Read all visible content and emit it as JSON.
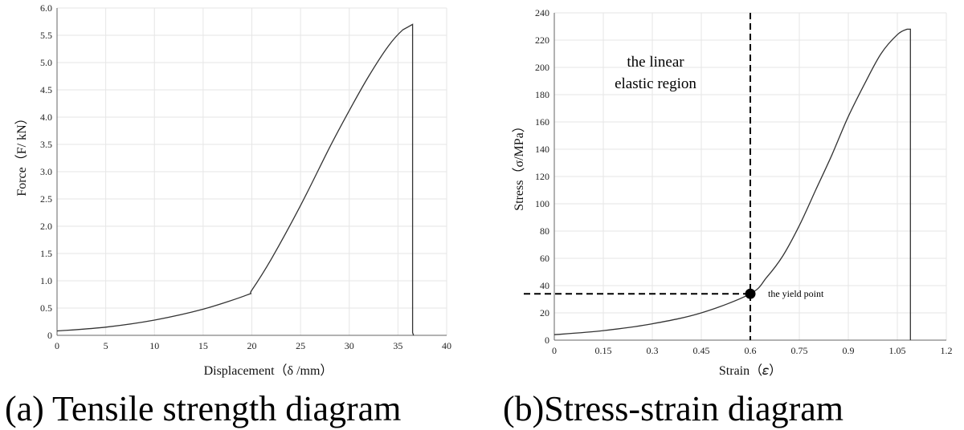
{
  "chart_data": [
    {
      "type": "line",
      "title": "",
      "xlabel": "Displacement（δ /mm）",
      "ylabel": "Force（F/ kN）",
      "xlim": [
        0,
        40
      ],
      "ylim": [
        0,
        6.0
      ],
      "x_ticks": [
        "0",
        "5",
        "10",
        "15",
        "20",
        "25",
        "30",
        "35",
        "40"
      ],
      "y_ticks": [
        "0",
        "0.5",
        "1.0",
        "1.5",
        "2.0",
        "2.5",
        "3.0",
        "3.5",
        "4.0",
        "4.5",
        "5.0",
        "5.5",
        "6.0"
      ],
      "grid": true,
      "caption": "(a)  Tensile strength diagram",
      "series": [
        {
          "x": [
            0,
            5,
            10,
            15,
            19.5,
            20,
            22,
            25,
            28,
            30,
            32,
            34,
            35.5,
            36.5,
            36.5,
            36.6
          ],
          "y": [
            0.08,
            0.15,
            0.28,
            0.48,
            0.74,
            0.83,
            1.4,
            2.38,
            3.45,
            4.12,
            4.75,
            5.3,
            5.6,
            5.7,
            0.05,
            0.0
          ]
        }
      ]
    },
    {
      "type": "line",
      "title": "",
      "xlabel": "Strain（𝜀）",
      "ylabel": "Stress（σ/MPa）",
      "xlim": [
        0,
        1.2
      ],
      "ylim": [
        0,
        240
      ],
      "x_ticks": [
        "0",
        "0.15",
        "0.3",
        "0.45",
        "0.6",
        "0.75",
        "0.9",
        "1.05",
        "1.2"
      ],
      "y_ticks": [
        "0",
        "20",
        "40",
        "60",
        "80",
        "100",
        "120",
        "140",
        "160",
        "180",
        "200",
        "220",
        "240"
      ],
      "grid": true,
      "caption": "(b)Stress-strain diagram",
      "annotations": {
        "region_line1": "the linear",
        "region_line2": "elastic region",
        "yield_label": "the yield point"
      },
      "yield_point": {
        "x": 0.6,
        "y": 34
      },
      "series": [
        {
          "x": [
            0,
            0.15,
            0.3,
            0.45,
            0.6,
            0.65,
            0.7,
            0.75,
            0.8,
            0.85,
            0.9,
            0.95,
            1.0,
            1.05,
            1.08,
            1.09,
            1.09
          ],
          "y": [
            4,
            7,
            12,
            20,
            34,
            46,
            62,
            84,
            110,
            136,
            164,
            188,
            210,
            224,
            228,
            228,
            0
          ]
        }
      ]
    }
  ]
}
